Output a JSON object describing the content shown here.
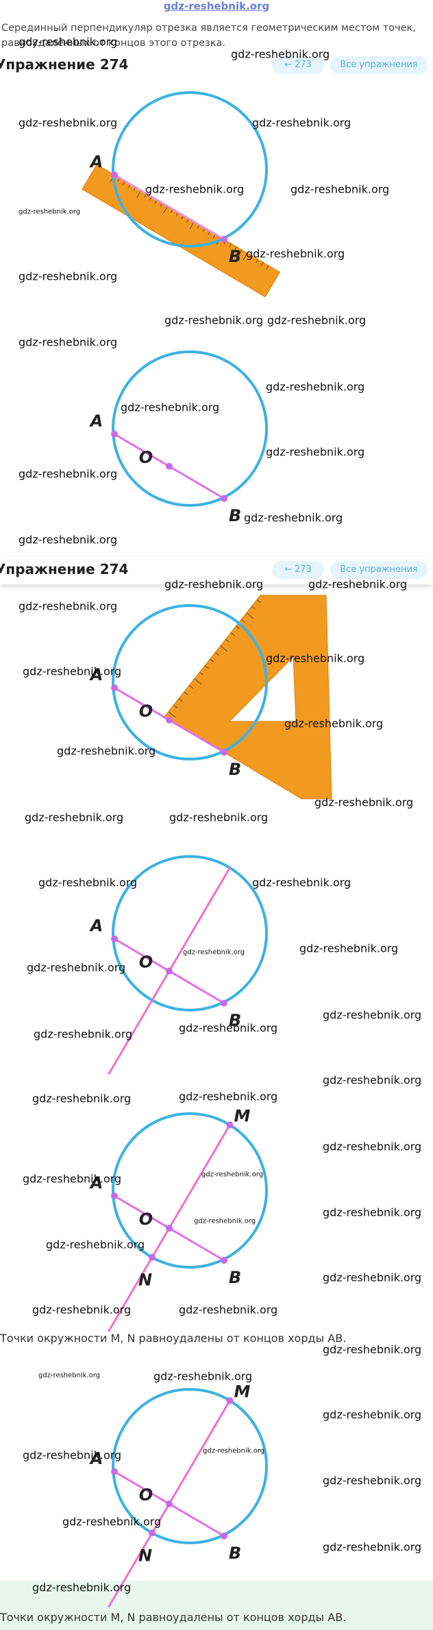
{
  "site_logo": "gdz-reshebnik.org",
  "intro": "Серединный перпендикуляр отрезка является геометрическим местом точек, равноудалённых от концов этого отрезка.",
  "sections": [
    {
      "title": "Упражнение 274",
      "prev_button": "273",
      "all_button": "Все упражнения"
    },
    {
      "title": "Упражнение 274",
      "prev_button": "273",
      "all_button": "Все упражнения"
    }
  ],
  "figures": [
    {
      "points": [
        "A",
        "B"
      ]
    },
    {
      "points": [
        "A",
        "O",
        "B"
      ]
    },
    {
      "points": [
        "A",
        "O",
        "B"
      ]
    },
    {
      "points": [
        "A",
        "O",
        "B"
      ]
    },
    {
      "points": [
        "A",
        "O",
        "B",
        "M",
        "N"
      ]
    },
    {
      "points": [
        "A",
        "O",
        "B",
        "M",
        "N"
      ]
    }
  ],
  "captions": [
    "Точки окружности M,  N равноудалены от концов хорды AB.",
    "Точки окружности M,  N равноудалены от концов хорды AB."
  ],
  "watermarks": [
    "gdz-reshebnik.org",
    "gdz-reshebnik.org",
    "gdz-reshebnik.org",
    "gdz-reshebnik.org",
    "gdz-reshebnik.org",
    "gdz-reshebnik.org",
    "gdz-reshebnik.org",
    "gdz-reshebnik.org",
    "gdz-reshebnik.org",
    "gdz-reshebnik.org",
    "gdz-reshebnik.org",
    "gdz-reshebnik.org",
    "gdz-reshebnik.org",
    "gdz-reshebnik.org",
    "gdz-reshebnik.org",
    "gdz-reshebnik.org",
    "gdz-reshebnik.org",
    "gdz-reshebnik.org",
    "gdz-reshebnik.org",
    "gdz-reshebnik.org",
    "gdz-reshebnik.org",
    "gdz-reshebnik.org",
    "gdz-reshebnik.org",
    "gdz-reshebnik.org",
    "gdz-reshebnik.org",
    "gdz-reshebnik.org",
    "gdz-reshebnik.org",
    "gdz-reshebnik.org",
    "gdz-reshebnik.org",
    "gdz-reshebnik.org",
    "gdz-reshebnik.org",
    "gdz-reshebnik.org",
    "gdz-reshebnik.org",
    "gdz-reshebnik.org",
    "gdz-reshebnik.org",
    "gdz-reshebnik.org",
    "gdz-reshebnik.org",
    "gdz-reshebnik.org",
    "gdz-reshebnik.org",
    "gdz-reshebnik.org",
    "gdz-reshebnik.org",
    "gdz-reshebnik.org",
    "gdz-reshebnik.org",
    "gdz-reshebnik.org",
    "gdz-reshebnik.org",
    "gdz-reshebnik.org",
    "gdz-reshebnik.org",
    "gdz-reshebnik.org",
    "gdz-reshebnik.org",
    "gdz-reshebnik.org",
    "gdz-reshebnik.org",
    "gdz-reshebnik.org",
    "gdz-reshebnik.org",
    "gdz-reshebnik.org",
    "gdz-reshebnik.org",
    "gdz-reshebnik.org",
    "gdz-reshebnik.org",
    "gdz-reshebnik.org"
  ]
}
